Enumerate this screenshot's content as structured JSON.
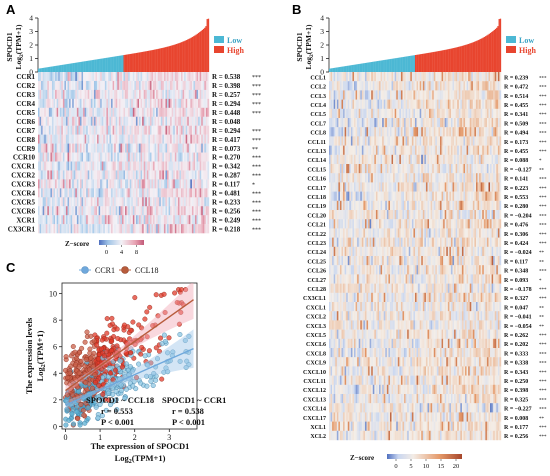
{
  "panel_labels": {
    "a": "A",
    "b": "B",
    "c": "C"
  },
  "colors": {
    "low": "#4cb8d4",
    "high": "#e8452f",
    "heat_low": "#4f6fbf",
    "heat_mid": "#f3f1f6",
    "heat_high": "#b5483e",
    "ccr1": "#6fa8dc",
    "ccl18": "#b85c3c",
    "scatter_low": "#4aa9c9",
    "scatter_high": "#e23b2b"
  },
  "chart_data": [
    {
      "type": "heatmap",
      "panel": "A",
      "top_bar": {
        "ylabel_line1": "SPOCD1",
        "ylabel_line2": "Log",
        "ylabel_sub": "2",
        "ylabel_tail": "(TPM+1)",
        "yticks": [
          "0",
          "1",
          "2",
          "3",
          "4"
        ],
        "ylim": [
          0,
          4
        ]
      },
      "legend": [
        {
          "label": "Low"
        },
        {
          "label": "High"
        }
      ],
      "rows": [
        {
          "gene": "CCR1",
          "r": "R = 0.538",
          "sig": "***"
        },
        {
          "gene": "CCR2",
          "r": "R = 0.398",
          "sig": "***"
        },
        {
          "gene": "CCR3",
          "r": "R = 0.257",
          "sig": "***"
        },
        {
          "gene": "CCR4",
          "r": "R = 0.294",
          "sig": "***"
        },
        {
          "gene": "CCR5",
          "r": "R = 0.448",
          "sig": "***"
        },
        {
          "gene": "CCR6",
          "r": "R = 0.048",
          "sig": ""
        },
        {
          "gene": "CCR7",
          "r": "R = 0.294",
          "sig": "***"
        },
        {
          "gene": "CCR8",
          "r": "R = 0.417",
          "sig": "***"
        },
        {
          "gene": "CCR9",
          "r": "R = 0.073",
          "sig": "**"
        },
        {
          "gene": "CCR10",
          "r": "R = 0.270",
          "sig": "***"
        },
        {
          "gene": "CXCR1",
          "r": "R = 0.342",
          "sig": "***"
        },
        {
          "gene": "CXCR2",
          "r": "R = 0.287",
          "sig": "***"
        },
        {
          "gene": "CXCR3",
          "r": "R = 0.117",
          "sig": "*"
        },
        {
          "gene": "CXCR4",
          "r": "R = 0.481",
          "sig": "***"
        },
        {
          "gene": "CXCR5",
          "r": "R = 0.233",
          "sig": "***"
        },
        {
          "gene": "CXCR6",
          "r": "R = 0.256",
          "sig": "***"
        },
        {
          "gene": "XCR1",
          "r": "R = 0.249",
          "sig": "***"
        },
        {
          "gene": "CX3CR1",
          "r": "R = 0.218",
          "sig": "***"
        }
      ],
      "colorbar": {
        "label": "Z−score",
        "ticks": [
          "0",
          "4",
          "8"
        ],
        "range": [
          -2,
          10
        ]
      }
    },
    {
      "type": "heatmap",
      "panel": "B",
      "top_bar": {
        "ylabel_line1": "SPOCD1",
        "ylabel_line2": "Log",
        "ylabel_sub": "2",
        "ylabel_tail": "(TPM+1)",
        "yticks": [
          "0",
          "1",
          "2",
          "3",
          "4"
        ],
        "ylim": [
          0,
          4
        ]
      },
      "legend": [
        {
          "label": "Low"
        },
        {
          "label": "High"
        }
      ],
      "rows": [
        {
          "gene": "CCL1",
          "r": "R = 0.239",
          "sig": "***"
        },
        {
          "gene": "CCL2",
          "r": "R = 0.472",
          "sig": "***"
        },
        {
          "gene": "CCL3",
          "r": "R = 0.514",
          "sig": "***"
        },
        {
          "gene": "CCL4",
          "r": "R = 0.455",
          "sig": "***"
        },
        {
          "gene": "CCL5",
          "r": "R = 0.341",
          "sig": "***"
        },
        {
          "gene": "CCL7",
          "r": "R = 0.509",
          "sig": "***"
        },
        {
          "gene": "CCL8",
          "r": "R = 0.494",
          "sig": "***"
        },
        {
          "gene": "CCL11",
          "r": "R = 0.173",
          "sig": "***"
        },
        {
          "gene": "CCL13",
          "r": "R = 0.455",
          "sig": "***"
        },
        {
          "gene": "CCL14",
          "r": "R = 0.088",
          "sig": "*"
        },
        {
          "gene": "CCL15",
          "r": "R = −0.127",
          "sig": "**"
        },
        {
          "gene": "CCL16",
          "r": "R = 0.141",
          "sig": "***"
        },
        {
          "gene": "CCL17",
          "r": "R = 0.223",
          "sig": "***"
        },
        {
          "gene": "CCL18",
          "r": "R = 0.553",
          "sig": "***"
        },
        {
          "gene": "CCL19",
          "r": "R = 0.280",
          "sig": "***"
        },
        {
          "gene": "CCL20",
          "r": "R = −0.204",
          "sig": "***"
        },
        {
          "gene": "CCL21",
          "r": "R = 0.476",
          "sig": "***"
        },
        {
          "gene": "CCL22",
          "r": "R = 0.306",
          "sig": "***"
        },
        {
          "gene": "CCL23",
          "r": "R = 0.424",
          "sig": "***"
        },
        {
          "gene": "CCL24",
          "r": "R = −0.024",
          "sig": "**"
        },
        {
          "gene": "CCL25",
          "r": "R = 0.117",
          "sig": "**"
        },
        {
          "gene": "CCL26",
          "r": "R = 0.348",
          "sig": "***"
        },
        {
          "gene": "CCL27",
          "r": "R = 0.093",
          "sig": "*"
        },
        {
          "gene": "CCL28",
          "r": "R = −0.178",
          "sig": "***"
        },
        {
          "gene": "CX3CL1",
          "r": "R = 0.327",
          "sig": "***"
        },
        {
          "gene": "CXCL1",
          "r": "R = 0.047",
          "sig": "**"
        },
        {
          "gene": "CXCL2",
          "r": "R = −0.041",
          "sig": "**"
        },
        {
          "gene": "CXCL3",
          "r": "R = −0.054",
          "sig": "**"
        },
        {
          "gene": "CXCL5",
          "r": "R = 0.262",
          "sig": "***"
        },
        {
          "gene": "CXCL6",
          "r": "R = 0.202",
          "sig": "***"
        },
        {
          "gene": "CXCL8",
          "r": "R = 0.333",
          "sig": "***"
        },
        {
          "gene": "CXCL9",
          "r": "R = 0.338",
          "sig": "***"
        },
        {
          "gene": "CXCL10",
          "r": "R = 0.343",
          "sig": "***"
        },
        {
          "gene": "CXCL11",
          "r": "R = 0.250",
          "sig": "***"
        },
        {
          "gene": "CXCL12",
          "r": "R = 0.398",
          "sig": "***"
        },
        {
          "gene": "CXCL13",
          "r": "R = 0.325",
          "sig": "***"
        },
        {
          "gene": "CXCL14",
          "r": "R = −0.227",
          "sig": "***"
        },
        {
          "gene": "CXCL17",
          "r": "R = 0.008",
          "sig": "**"
        },
        {
          "gene": "XCL1",
          "r": "R = 0.177",
          "sig": "***"
        },
        {
          "gene": "XCL2",
          "r": "R = 0.256",
          "sig": "***"
        }
      ],
      "colorbar": {
        "label": "Z−score",
        "ticks": [
          "0",
          "5",
          "10",
          "15",
          "20"
        ],
        "range": [
          -3,
          22
        ]
      }
    },
    {
      "type": "scatter",
      "panel": "C",
      "xlabel_line1": "The expression of  SPOCD1",
      "xlabel_line2": "Log",
      "xlabel_sub": "2",
      "xlabel_tail": "(TPM+1)",
      "ylabel_line1": "The expression levels",
      "ylabel_line2": "Log",
      "ylabel_sub": "2",
      "ylabel_tail": "(TPM+1)",
      "xticks": [
        "0",
        "1",
        "2",
        "3"
      ],
      "yticks": [
        "0",
        "2",
        "4",
        "6",
        "8",
        "10"
      ],
      "xlim": [
        -0.1,
        3.8
      ],
      "ylim": [
        -0.2,
        10.8
      ],
      "series": [
        {
          "name": "CCR1",
          "fit": {
            "slope": 1.15,
            "intercept": 1.6
          }
        },
        {
          "name": "CCL18",
          "fit": {
            "slope": 1.85,
            "intercept": 2.7
          }
        }
      ],
      "annotations": {
        "ccl18": {
          "title": "SPOCD1 ~ CCL18",
          "r": "r = 0.553",
          "p": "P < 0.001"
        },
        "ccr1": {
          "title": "SPOCD1 ~ CCR1",
          "r": "r = 0.538",
          "p": "P < 0.001"
        }
      }
    }
  ]
}
